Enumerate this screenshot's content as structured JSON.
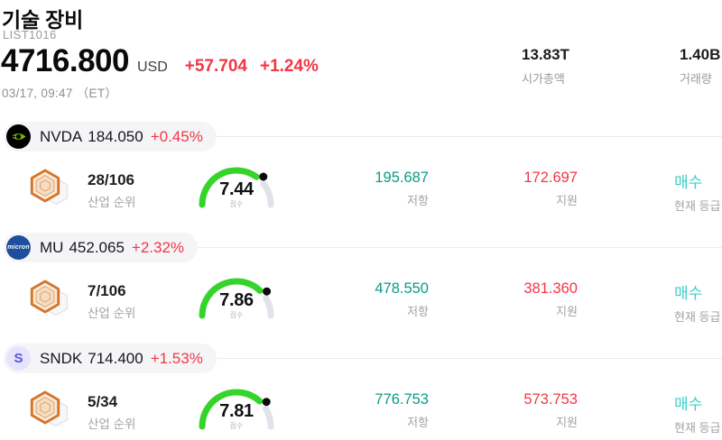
{
  "header": {
    "title": "기술 장비",
    "list_id": "LIST1016",
    "price": "4716.800",
    "currency": "USD",
    "change_abs": "+57.704",
    "change_pct": "+1.24%",
    "datetime": "03/17, 09:47 （ET）",
    "market_cap": {
      "value": "13.83T",
      "label": "시가총액"
    },
    "volume": {
      "value": "1.40B",
      "label": "거래량"
    }
  },
  "labels": {
    "industry_rank": "산업 순위",
    "score": "점수",
    "resistance": "저항",
    "support": "지원",
    "current_rating": "현재 등급"
  },
  "colors": {
    "red": "#f23645",
    "teal": "#0a9b85",
    "cyan": "#3ecfc6",
    "green": "#35d42a",
    "rest": "#e2e2ea"
  },
  "stocks": [
    {
      "ticker": "NVDA",
      "price": "184.050",
      "change": "+0.45%",
      "rank": "28/106",
      "score": "7.44",
      "resistance": "195.687",
      "support": "172.697",
      "rating": "매수",
      "logo_text": ""
    },
    {
      "ticker": "MU",
      "price": "452.065",
      "change": "+2.32%",
      "rank": "7/106",
      "score": "7.86",
      "resistance": "478.550",
      "support": "381.360",
      "rating": "매수",
      "logo_text": "micron"
    },
    {
      "ticker": "SNDK",
      "price": "714.400",
      "change": "+1.53%",
      "rank": "5/34",
      "score": "7.81",
      "resistance": "776.753",
      "support": "573.753",
      "rating": "매수",
      "logo_text": "S"
    }
  ]
}
